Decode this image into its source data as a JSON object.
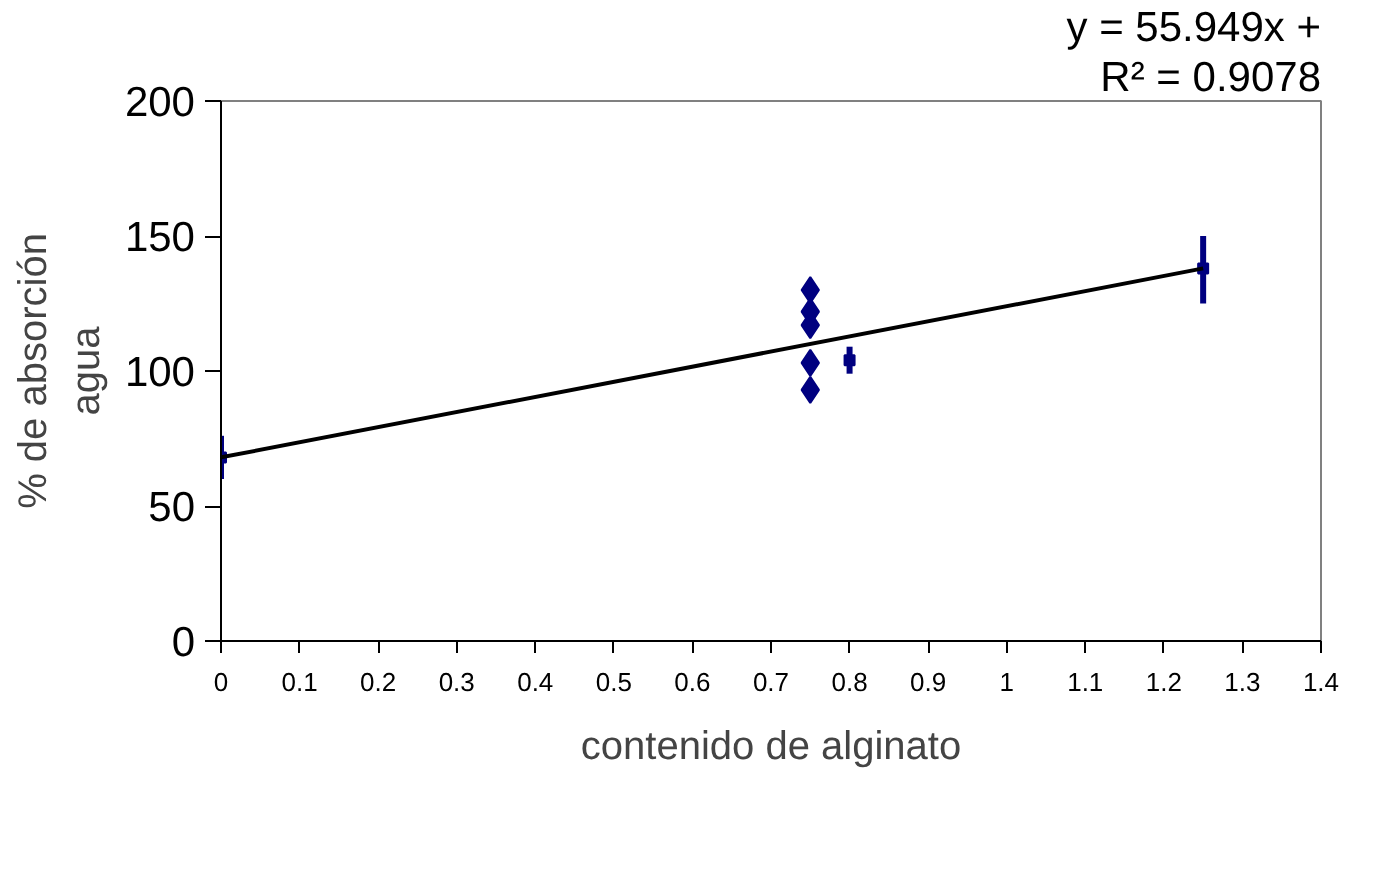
{
  "chart_data": {
    "type": "scatter",
    "xlabel": "contenido de alginato",
    "ylabel": "% de absorción agua",
    "annotations": [
      "y = 55.949x +",
      "R² = 0.9078"
    ],
    "series": [
      {
        "color": "#000080",
        "marker": "diamond",
        "x": [
          0.75,
          0.75,
          0.75,
          0.75,
          0.75
        ],
        "values": [
          130,
          122,
          117,
          103,
          93
        ]
      },
      {
        "color": "#000080",
        "marker": "square",
        "x": [
          0,
          0.8,
          1.25
        ],
        "values": [
          68,
          104,
          138
        ],
        "errors": [
          [
            60,
            76
          ],
          [
            99,
            109
          ],
          [
            125,
            150
          ]
        ]
      },
      {
        "type": "line",
        "color": "#000000",
        "x": [
          0,
          1.25
        ],
        "values": [
          68,
          138
        ]
      }
    ],
    "xlim": [
      0,
      1.4
    ],
    "xticks": [
      0,
      0.1,
      0.2,
      0.3,
      0.4,
      0.5,
      0.6,
      0.7,
      0.8,
      0.9,
      1,
      1.1,
      1.2,
      1.3,
      1.4
    ],
    "ylim": [
      0,
      200
    ],
    "yticks": [
      0,
      50,
      100,
      150,
      200
    ],
    "grid": false
  }
}
